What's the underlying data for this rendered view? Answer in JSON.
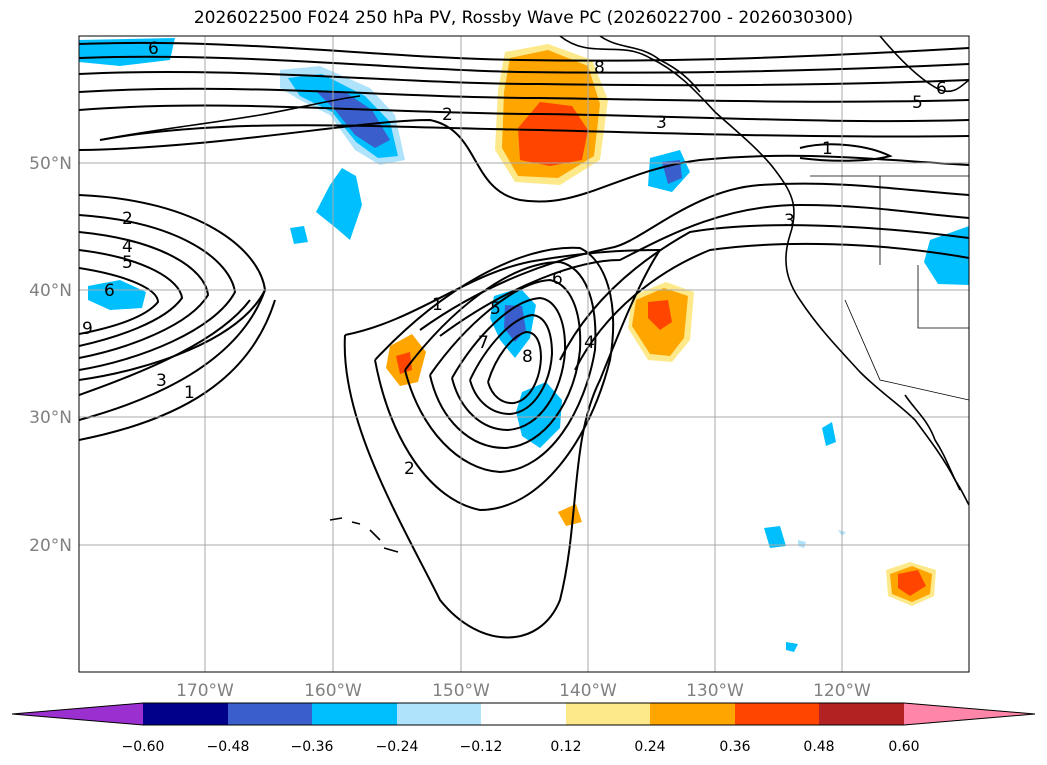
{
  "title": "2026022500 F024 250 hPa PV, Rossby Wave PC (2026022700 - 2026030300)",
  "map": {
    "lat_labels": [
      "50°N",
      "40°N",
      "30°N",
      "20°N"
    ],
    "lon_labels": [
      "170°W",
      "160°W",
      "150°W",
      "140°W",
      "130°W",
      "120°W"
    ],
    "contour_labels": [
      "6",
      "8",
      "5",
      "6",
      "2",
      "3",
      "1",
      "2",
      "4",
      "5",
      "6",
      "9",
      "3",
      "1",
      "1",
      "6",
      "7",
      "8",
      "4",
      "2",
      "3",
      "5"
    ]
  },
  "colorbar": {
    "ticks": [
      "−0.60",
      "−0.48",
      "−0.36",
      "−0.24",
      "−0.12",
      "0.12",
      "0.24",
      "0.36",
      "0.48",
      "0.60"
    ],
    "colors": [
      "#9b30d0",
      "#00008b",
      "#3a5fcd",
      "#00bfff",
      "#aee3fb",
      "#ffffff",
      "#fde98a",
      "#ffa500",
      "#ff4500",
      "#b22222",
      "#ff86a8"
    ]
  }
}
